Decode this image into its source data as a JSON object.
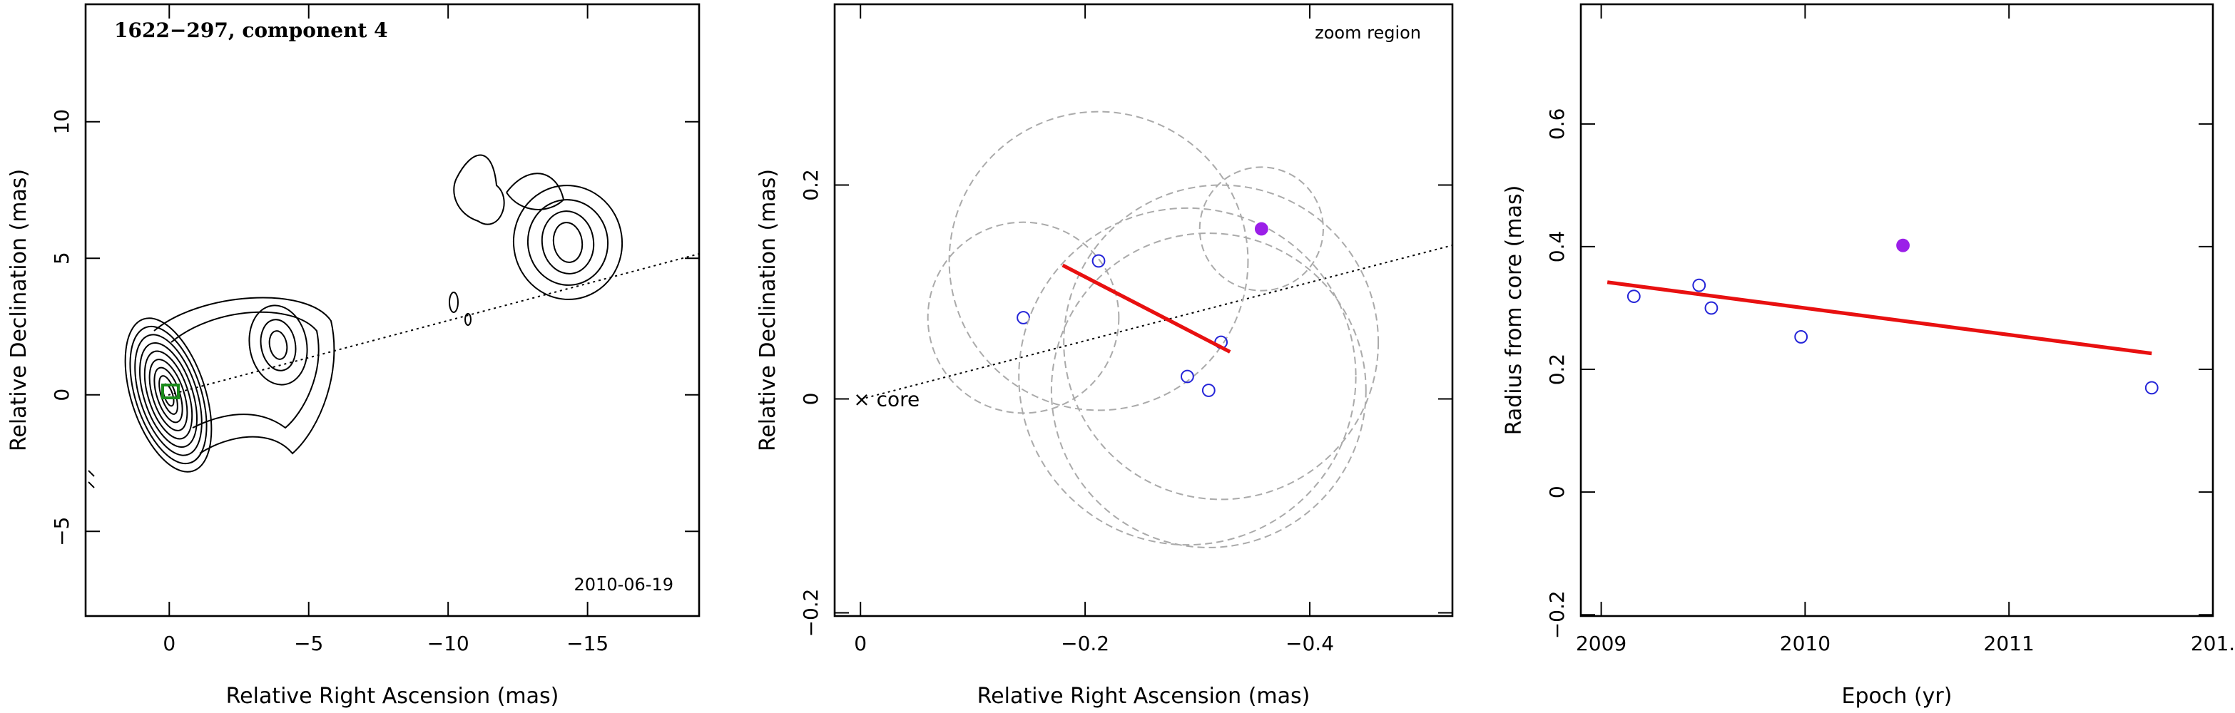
{
  "chart_data": [
    {
      "type": "contour",
      "title": "1622−297, component 4",
      "annotation": "2010-06-19",
      "xlabel": "Relative Right Ascension (mas)",
      "ylabel": "Relative Declination (mas)",
      "xlim": [
        3,
        -19
      ],
      "ylim": [
        -8.1,
        14.3
      ],
      "xticks": [
        0,
        {
          "value": -5,
          "label": "−5"
        },
        {
          "value": -10,
          "label": "−10"
        },
        {
          "value": -15,
          "label": "−15"
        }
      ],
      "yticks": [
        {
          "value": -5,
          "label": "−5"
        },
        0,
        5,
        10
      ]
    },
    {
      "type": "scatter",
      "annotation": "zoom region",
      "core_label": "× core",
      "xlabel": "Relative Right Ascension (mas)",
      "ylabel": "Relative Declination (mas)",
      "xlim": [
        0.023,
        -0.527
      ],
      "ylim": [
        -0.203,
        0.369
      ],
      "xticks": [
        0,
        {
          "value": -0.2,
          "label": "−0.2"
        },
        {
          "value": -0.4,
          "label": "−0.4"
        }
      ],
      "yticks": [
        {
          "value": -0.2,
          "label": "−0.2"
        },
        0,
        0.2
      ],
      "series": [
        {
          "color": "#2424d8",
          "filled": false,
          "x": [
            -0.145,
            -0.212,
            -0.321,
            -0.291,
            -0.31
          ],
          "values": [
            0.076,
            0.129,
            0.053,
            0.021,
            0.008
          ],
          "radius": [
            0.085,
            0.133,
            0.14,
            0.15,
            0.14
          ]
        },
        {
          "color": "#9b1fe8",
          "filled": true,
          "x": [
            -0.357
          ],
          "values": [
            0.159
          ],
          "radius": [
            0.055
          ]
        }
      ],
      "fit": {
        "color": "#e81010",
        "x": [
          -0.18,
          -0.329
        ],
        "values": [
          0.125,
          0.044
        ]
      }
    },
    {
      "type": "scatter",
      "xlabel": "Epoch (yr)",
      "ylabel": "Radius from core (mas)",
      "xlim": [
        2008.9,
        2012.0
      ],
      "ylim": [
        -0.202,
        0.795
      ],
      "xticks": [
        2009,
        2010,
        2011,
        {
          "value": 2012,
          "label": "201."
        }
      ],
      "yticks": [
        {
          "value": -0.2,
          "label": "−0.2"
        },
        0,
        0.2,
        0.4,
        0.6
      ],
      "series": [
        {
          "color": "#2424d8",
          "filled": false,
          "x": [
            2009.16,
            2009.48,
            2009.54,
            2009.98,
            2011.7
          ],
          "values": [
            0.319,
            0.337,
            0.3,
            0.253,
            0.17
          ]
        },
        {
          "color": "#9b1fe8",
          "filled": true,
          "x": [
            2010.48
          ],
          "values": [
            0.402
          ]
        }
      ],
      "fit": {
        "color": "#e81010",
        "x": [
          2009.03,
          2011.7
        ],
        "values": [
          0.342,
          0.226
        ]
      }
    }
  ]
}
